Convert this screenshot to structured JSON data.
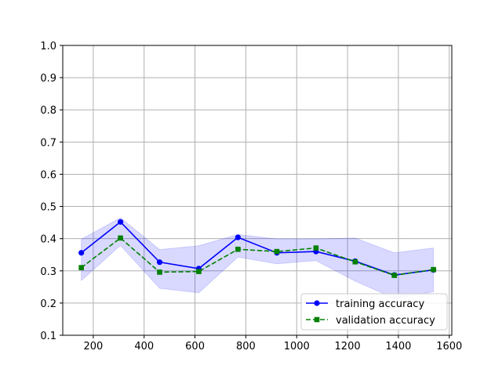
{
  "chart_data": {
    "type": "line",
    "title": "",
    "xlabel": "",
    "ylabel": "",
    "xlim": [
      80,
      1610
    ],
    "ylim": [
      0.1,
      1.0
    ],
    "x_ticks": [
      200,
      400,
      600,
      800,
      1000,
      1200,
      1400,
      1600
    ],
    "y_ticks": [
      0.1,
      0.2,
      0.3,
      0.4,
      0.5,
      0.6,
      0.7,
      0.8,
      0.9,
      1.0
    ],
    "x_tick_labels": [
      "200",
      "400",
      "600",
      "800",
      "1000",
      "1200",
      "1400",
      "1600"
    ],
    "y_tick_labels": [
      "0.1",
      "0.2",
      "0.3",
      "0.4",
      "0.5",
      "0.6",
      "0.7",
      "0.8",
      "0.9",
      "1.0"
    ],
    "grid": true,
    "legend_position": "bottom-right",
    "x": [
      153,
      307,
      461,
      615,
      769,
      922,
      1076,
      1230,
      1384,
      1538
    ],
    "series": [
      {
        "name": "training accuracy",
        "color": "#0000ff",
        "band_color": "#0000ff",
        "marker": "circle",
        "line_style": "solid",
        "values": [
          0.356,
          0.452,
          0.327,
          0.307,
          0.404,
          0.356,
          0.36,
          0.33,
          0.287,
          0.303
        ],
        "band_upper": [
          0.398,
          0.465,
          0.366,
          0.378,
          0.413,
          0.399,
          0.399,
          0.402,
          0.356,
          0.371
        ],
        "band_lower": [
          0.27,
          0.379,
          0.246,
          0.232,
          0.343,
          0.322,
          0.332,
          0.268,
          0.215,
          0.235
        ]
      },
      {
        "name": "validation accuracy",
        "color": "#008000",
        "band_color": "#008000",
        "marker": "square",
        "line_style": "dashed",
        "values": [
          0.31,
          0.402,
          0.296,
          0.298,
          0.367,
          0.36,
          0.371,
          0.328,
          0.286,
          0.304
        ],
        "band_upper": [
          0.31,
          0.402,
          0.296,
          0.298,
          0.367,
          0.36,
          0.371,
          0.328,
          0.286,
          0.304
        ],
        "band_lower": [
          0.31,
          0.402,
          0.296,
          0.298,
          0.367,
          0.36,
          0.371,
          0.328,
          0.286,
          0.304
        ]
      }
    ]
  }
}
